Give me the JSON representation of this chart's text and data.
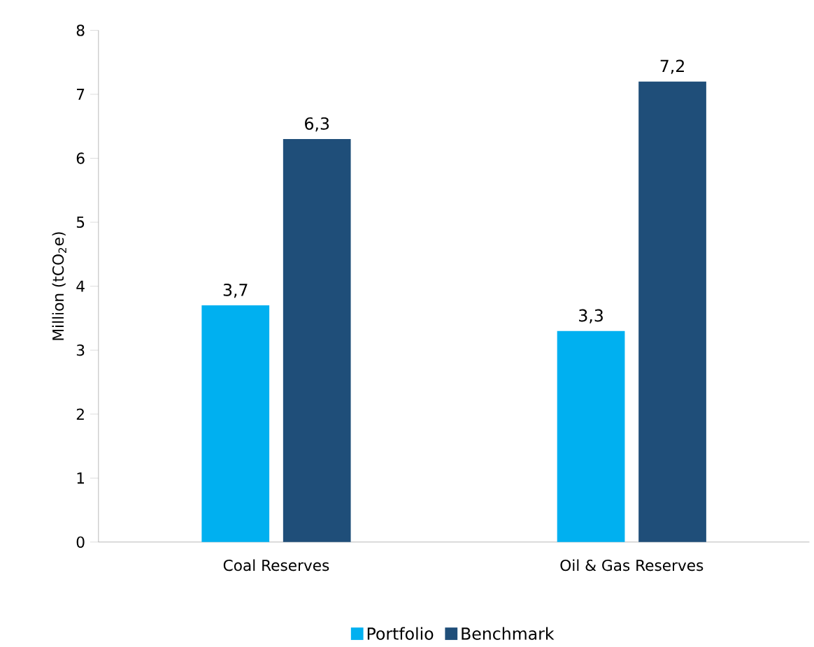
{
  "chart_data": {
    "type": "bar",
    "ylabel": "Million (tCO$_{2}$e)",
    "categories": [
      "Coal Reserves",
      "Oil & Gas Reserves"
    ],
    "series": [
      {
        "name": "Portfolio",
        "color": "#00b0f0",
        "values": [
          3.7,
          3.3
        ],
        "value_labels": [
          "3,7",
          "3,3"
        ]
      },
      {
        "name": "Benchmark",
        "color": "#1f4e79",
        "values": [
          6.3,
          7.2
        ],
        "value_labels": [
          "6,3",
          "7,2"
        ]
      }
    ],
    "ylim": [
      0,
      8
    ],
    "yticks": [
      0,
      1,
      2,
      3,
      4,
      5,
      6,
      7,
      8
    ],
    "legend": "bottom"
  }
}
